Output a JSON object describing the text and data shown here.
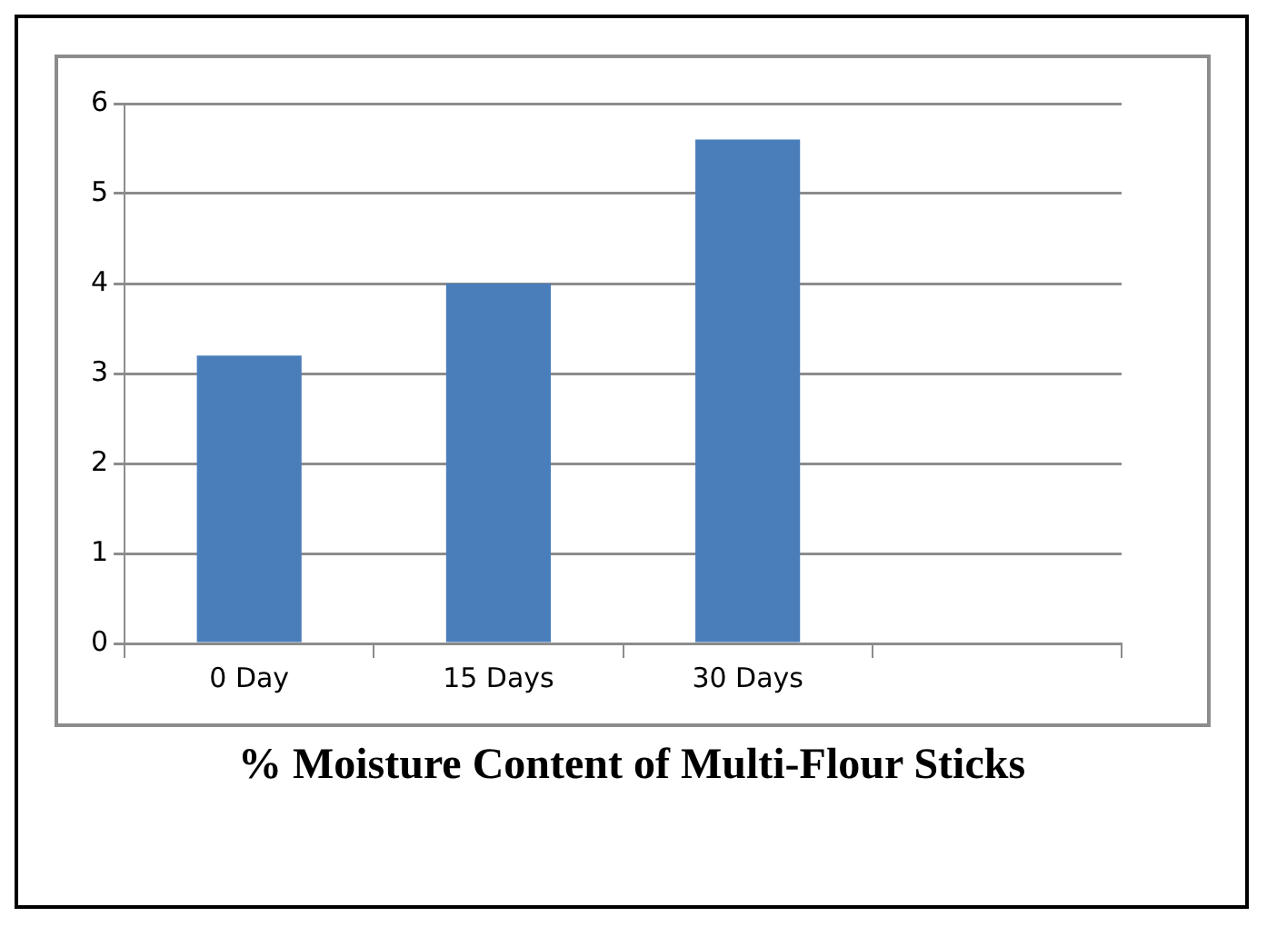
{
  "chart_data": {
    "type": "bar",
    "title": "% Moisture Content of Multi-Flour Sticks",
    "categories": [
      "0 Day",
      "15 Days",
      "30 Days",
      null
    ],
    "values": [
      3.2,
      4.0,
      5.6,
      null
    ],
    "color": "#4a7ebb",
    "ylim": [
      0,
      6
    ],
    "yticks": [
      0,
      1,
      2,
      3,
      4,
      5,
      6
    ],
    "grid": "y"
  }
}
